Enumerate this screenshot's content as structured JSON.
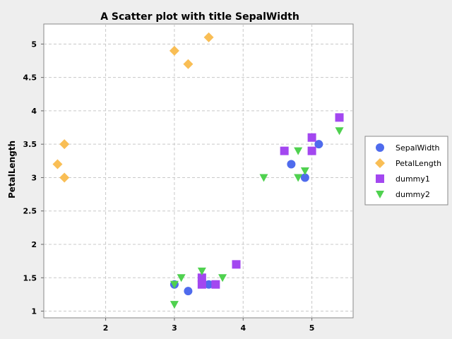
{
  "chart_data": {
    "type": "scatter",
    "title": "A Scatter plot with title SepalWidth",
    "xlabel": "",
    "ylabel": "PetalLength",
    "xlim": [
      1.1,
      5.6
    ],
    "ylim": [
      0.9,
      5.3
    ],
    "xticks": [
      2,
      3,
      4,
      5
    ],
    "yticks": [
      1,
      1.5,
      2,
      2.5,
      3,
      3.5,
      4,
      4.5,
      5
    ],
    "grid": true,
    "legend_position": "right",
    "series": [
      {
        "name": "SepalWidth",
        "marker": "circle",
        "color": "#4f6bed",
        "points": [
          [
            3.0,
            1.4
          ],
          [
            3.2,
            1.3
          ],
          [
            3.5,
            1.4
          ],
          [
            4.7,
            3.2
          ],
          [
            4.9,
            3.0
          ],
          [
            5.1,
            3.5
          ]
        ]
      },
      {
        "name": "PetalLength",
        "marker": "diamond",
        "color": "#f9be55",
        "points": [
          [
            1.4,
            3.5
          ],
          [
            1.3,
            3.2
          ],
          [
            1.4,
            3.0
          ],
          [
            3.0,
            4.9
          ],
          [
            3.2,
            4.7
          ],
          [
            3.5,
            5.1
          ]
        ]
      },
      {
        "name": "dummy1",
        "marker": "square",
        "color": "#a347f0",
        "points": [
          [
            3.4,
            1.5
          ],
          [
            3.4,
            1.4
          ],
          [
            3.6,
            1.4
          ],
          [
            3.9,
            1.7
          ],
          [
            4.6,
            3.4
          ],
          [
            5.0,
            3.6
          ],
          [
            5.0,
            3.4
          ],
          [
            5.4,
            3.9
          ]
        ]
      },
      {
        "name": "dummy2",
        "marker": "triangle-down",
        "color": "#4fd14f",
        "points": [
          [
            3.0,
            1.4
          ],
          [
            3.0,
            1.1
          ],
          [
            3.1,
            1.5
          ],
          [
            3.4,
            1.6
          ],
          [
            3.7,
            1.5
          ],
          [
            4.3,
            3.0
          ],
          [
            4.8,
            3.4
          ],
          [
            4.8,
            3.0
          ],
          [
            4.9,
            3.1
          ],
          [
            5.4,
            3.7
          ]
        ]
      }
    ]
  }
}
